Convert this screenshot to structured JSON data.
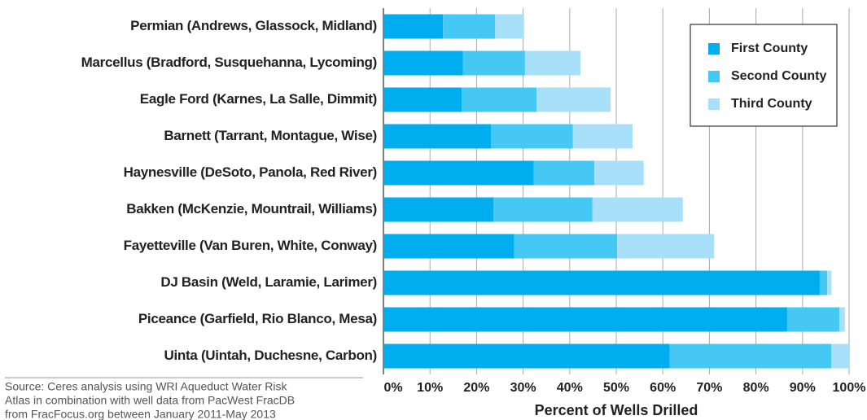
{
  "chart_data": {
    "type": "stacked_barh",
    "x_label": "Percent of Wells Drilled",
    "source": [
      "Source: Ceres analysis using WRI Aqueduct Water Risk",
      "Atlas in combination with well data from PacWest FracDB",
      "from FracFocus.org between January 2011-May 2013"
    ],
    "categories": [
      "Permian (Andrews, Glassock, Midland)",
      "Marcellus (Bradford, Susquehanna, Lycoming)",
      "Eagle Ford (Karnes, La Salle, Dimmit)",
      "Barnett (Tarrant, Montague, Wise)",
      "Haynesville (DeSoto, Panola, Red River)",
      "Bakken (McKenzie, Mountrail, Williams)",
      "Fayetteville (Van Buren, White, Conway)",
      "DJ Basin (Weld, Laramie, Larimer)",
      "Piceance (Garfield, Rio Blanco, Mesa)",
      "Uinta (Uintah, Duchesne, Carbon)"
    ],
    "series": [
      {
        "name": "First County",
        "color": "#00aeef",
        "values": [
          12.8,
          17.1,
          16.8,
          23.1,
          32.3,
          23.6,
          28.1,
          93.7,
          86.7,
          61.5
        ]
      },
      {
        "name": "Second County",
        "color": "#45c8f4",
        "values": [
          11.2,
          13.3,
          16.1,
          17.6,
          13.0,
          21.3,
          22.1,
          1.6,
          11.2,
          34.7
        ]
      },
      {
        "name": "Third County",
        "color": "#a8e0f9",
        "values": [
          6.2,
          11.9,
          15.9,
          12.8,
          10.6,
          19.4,
          20.8,
          0.9,
          1.2,
          3.8
        ]
      }
    ],
    "xlim": [
      0,
      100
    ],
    "xticks": [
      {
        "value": 0,
        "label": "0%"
      },
      {
        "value": 10,
        "label": "10%"
      },
      {
        "value": 20,
        "label": "20%"
      },
      {
        "value": 30,
        "label": "30%"
      },
      {
        "value": 40,
        "label": "40%"
      },
      {
        "value": 50,
        "label": "50%"
      },
      {
        "value": 60,
        "label": "60%"
      },
      {
        "value": 70,
        "label": "70%"
      },
      {
        "value": 80,
        "label": "80%"
      },
      {
        "value": 90,
        "label": "90%"
      },
      {
        "value": 100,
        "label": "100%"
      }
    ],
    "grid": true,
    "legend": "upper right"
  }
}
